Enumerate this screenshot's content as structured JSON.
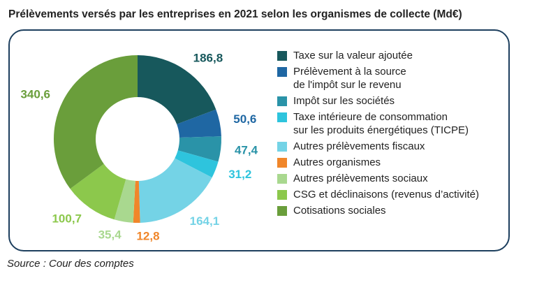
{
  "chart_data": {
    "type": "donut",
    "title": "Prélèvements versés par les entreprises en 2021 selon les organismes de collecte (Md€)",
    "categories": [
      "Taxe sur la valeur ajoutée",
      "Prélèvement à la source\nde l'impôt sur le revenu",
      "Impôt sur les sociétés",
      "Taxe intérieure de consommation\nsur les produits énergétiques (TICPE)",
      "Autres prélèvements fiscaux",
      "Autres organismes",
      "Autres prélèvements sociaux",
      "CSG et déclinaisons (revenus d’activité)",
      "Cotisations sociales"
    ],
    "values": [
      186.8,
      50.6,
      47.4,
      31.2,
      164.1,
      12.8,
      35.4,
      100.7,
      340.6
    ],
    "value_labels": [
      "186,8",
      "50,6",
      "47,4",
      "31,2",
      "164,1",
      "12,8",
      "35,4",
      "100,7",
      "340,6"
    ],
    "colors": [
      "#17585c",
      "#1f67a3",
      "#2a93a8",
      "#2ec4dd",
      "#74d3e6",
      "#f0862a",
      "#a9d88f",
      "#8cc84c",
      "#6a9e3b"
    ],
    "source": "Source : Cour des comptes"
  }
}
